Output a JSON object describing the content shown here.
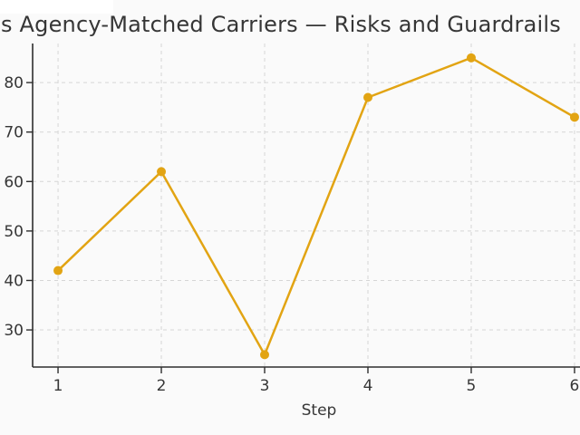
{
  "figure": {
    "background_color": "#fafafa",
    "white_patch_color": "#ffffff",
    "text_color": "#363636",
    "grid_color": "#d6d6d6",
    "spine_color": "#2e2e2e"
  },
  "chart_data": {
    "type": "line",
    "title": "s Agency-Matched Carriers — Risks and Guardrails",
    "title_note_visible_fragment": "s Agency-Matched Carriers — Risks and Guardra (clipped at both image edges)",
    "x": [
      1,
      2,
      3,
      4,
      5,
      6
    ],
    "values": [
      42,
      62,
      25,
      77,
      85,
      73
    ],
    "series_name": "",
    "xlabel": "Step",
    "ylabel": "",
    "xticks": [
      1,
      2,
      3,
      4,
      5,
      6
    ],
    "yticks": [
      30,
      40,
      50,
      60,
      70,
      80
    ],
    "xlim": [
      0.754,
      6.053
    ],
    "ylim": [
      22.5,
      87.9
    ],
    "grid": true,
    "grid_style": "dashed",
    "legend": false,
    "line_color": "#E2A413",
    "marker": "circle",
    "marker_radius": 5
  }
}
